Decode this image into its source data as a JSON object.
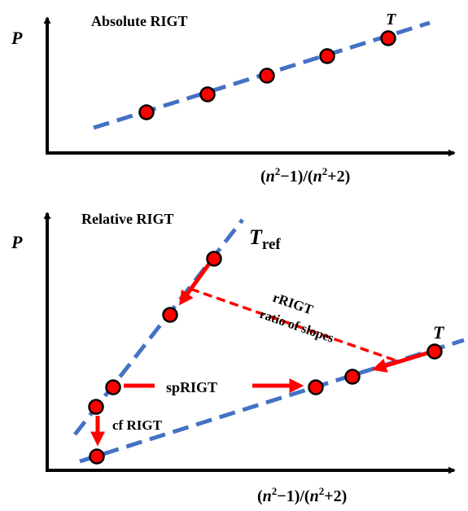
{
  "colors": {
    "axis": "#000000",
    "fit_line": "#4472C4",
    "marker_fill": "#FF0000",
    "marker_stroke": "#000000",
    "arrow": "#FF0000"
  },
  "top_panel": {
    "title": "Absolute RIGT",
    "y_axis_label": "P",
    "x_axis_label_parts": [
      "(",
      "n",
      "2",
      "−1)/(",
      "n",
      "2",
      "+2)"
    ],
    "line_label": "T"
  },
  "bottom_panel": {
    "title": "Relative RIGT",
    "y_axis_label": "P",
    "x_axis_label_parts": [
      "(",
      "n",
      "2",
      "−1)/(",
      "n",
      "2",
      "+2)"
    ],
    "ref_line_label": "T",
    "ref_line_subscript": "ref",
    "line_label": "T",
    "rrigt_label": "rRIGT",
    "rrigt_sublabel": "ratio of slopes",
    "sprigt_label": "spRIGT",
    "cfrigt_label": "cf RIGT"
  }
}
